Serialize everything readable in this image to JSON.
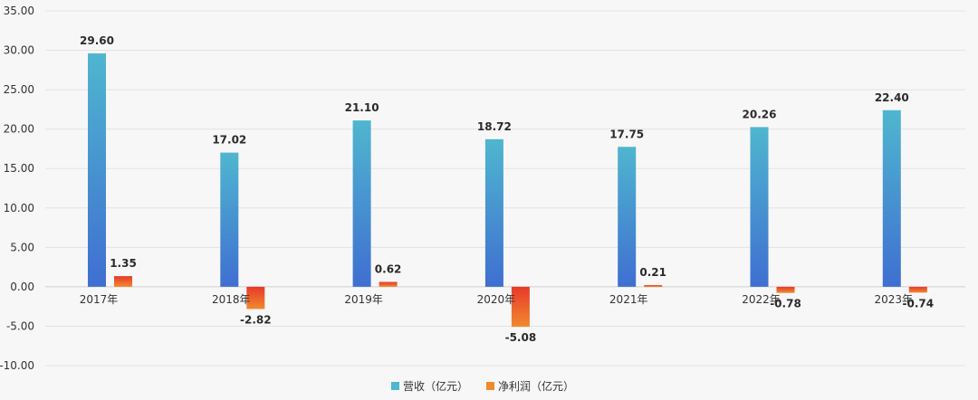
{
  "chart_data": {
    "type": "bar",
    "title": "",
    "xlabel": "",
    "ylabel": "",
    "categories": [
      "2017年",
      "2018年",
      "2019年",
      "2020年",
      "2021年",
      "2022年",
      "2023年"
    ],
    "series": [
      {
        "name": "营收（亿元）",
        "values": [
          29.6,
          17.02,
          21.1,
          18.72,
          17.75,
          20.26,
          22.4
        ],
        "labels": [
          "29.60",
          "17.02",
          "21.10",
          "18.72",
          "17.75",
          "20.26",
          "22.40"
        ],
        "color_top": "#4fb6cf",
        "color_bottom": "#3f6fd1"
      },
      {
        "name": "净利润（亿元）",
        "values": [
          1.35,
          -2.82,
          0.62,
          -5.08,
          0.21,
          -0.78,
          -0.74
        ],
        "labels": [
          "1.35",
          "-2.82",
          "0.62",
          "-5.08",
          "0.21",
          "-0.78",
          "-0.74"
        ],
        "color_top": "#e8392a",
        "color_bottom": "#f08a2e"
      }
    ],
    "ylim": [
      -10,
      35
    ],
    "yticks": [
      35,
      30,
      25,
      20,
      15,
      10,
      5,
      0,
      -5,
      -10
    ],
    "ytick_labels": [
      "35.00",
      "30.00",
      "25.00",
      "20.00",
      "15.00",
      "10.00",
      "5.00",
      "0.00",
      "-5.00",
      "-10.00"
    ],
    "grid": true,
    "legend_position": "bottom-center"
  }
}
